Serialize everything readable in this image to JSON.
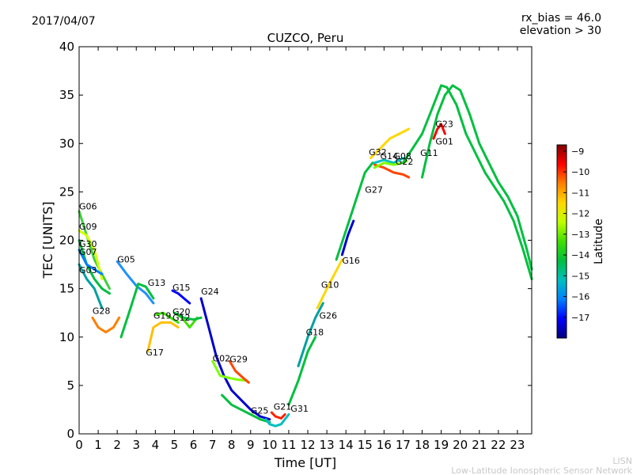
{
  "header": {
    "date": "2017/04/07",
    "rx_bias": "rx_bias = 46.0",
    "elevation": "elevation > 30"
  },
  "footer": {
    "line1": "LISN",
    "line2": "Low-Latitude Ionospheric Sensor Network"
  },
  "chart_data": {
    "type": "line",
    "title": "CUZCO, Peru",
    "xlabel": "Time [UT]",
    "ylabel": "TEC [UNITS]",
    "xlim": [
      0,
      23.75
    ],
    "ylim": [
      0,
      40
    ],
    "xticks": [
      0,
      1,
      2,
      3,
      4,
      5,
      6,
      7,
      8,
      9,
      10,
      11,
      12,
      13,
      14,
      15,
      16,
      17,
      18,
      19,
      20,
      21,
      22,
      23
    ],
    "yticks": [
      0,
      5,
      10,
      15,
      20,
      25,
      30,
      35,
      40
    ],
    "grid": false,
    "colorbar": {
      "label": "Latitude",
      "range": [
        -18,
        -8.7
      ],
      "ticks": [
        -9,
        -10,
        -11,
        -12,
        -13,
        -14,
        -15,
        -16,
        -17
      ],
      "colors": [
        "#00007f",
        "#0000ff",
        "#007fff",
        "#00bfbf",
        "#00bf3f",
        "#3fdf00",
        "#bfff00",
        "#ffd700",
        "#ff7f00",
        "#ff0000",
        "#7f0000"
      ]
    },
    "series": [
      {
        "name": "G06",
        "color": "#3fcf3f",
        "x": [
          0,
          0.4,
          0.8,
          1.2,
          1.6
        ],
        "y": [
          23,
          20.5,
          18,
          16.5,
          15
        ]
      },
      {
        "name": "G09",
        "color": "#d4ff00",
        "x": [
          0,
          0.4,
          0.8,
          1.2
        ],
        "y": [
          21,
          20.5,
          19,
          16
        ]
      },
      {
        "name": "G30",
        "color": "#00bf3f",
        "x": [
          0,
          0.4,
          0.8,
          1.2,
          1.6
        ],
        "y": [
          20,
          17.5,
          16,
          15,
          14.5
        ]
      },
      {
        "name": "G07",
        "color": "#007fff",
        "x": [
          0,
          0.4,
          0.8,
          1.2
        ],
        "y": [
          19,
          17.5,
          17,
          16.5
        ]
      },
      {
        "name": "G03",
        "color": "#00a0a0",
        "x": [
          0,
          0.4,
          0.8,
          1.2
        ],
        "y": [
          17.5,
          16,
          15,
          13
        ]
      },
      {
        "name": "G28",
        "color": "#ff7f00",
        "x": [
          0.7,
          1,
          1.4,
          1.8,
          2.1
        ],
        "y": [
          12,
          11,
          10.5,
          11,
          12
        ]
      },
      {
        "name": "G05",
        "color": "#1e90ff",
        "x": [
          2,
          2.5,
          3,
          3.5,
          3.9
        ],
        "y": [
          17.8,
          16.5,
          15.3,
          14.5,
          13.5
        ]
      },
      {
        "name": "G13",
        "color": "#00bf3f",
        "x": [
          2.2,
          2.7,
          3.1,
          3.5,
          3.9
        ],
        "y": [
          10,
          13,
          15.5,
          15.2,
          14
        ]
      },
      {
        "name": "G17",
        "color": "#ffbf00",
        "x": [
          3.6,
          3.9,
          4.3,
          4.8,
          5.2
        ],
        "y": [
          8.5,
          11,
          11.5,
          11.5,
          11
        ]
      },
      {
        "name": "G15",
        "color": "#0000ff",
        "x": [
          4.9,
          5.2,
          5.5,
          5.8
        ],
        "y": [
          14.8,
          14.5,
          14,
          13.5
        ]
      },
      {
        "name": "G19",
        "color": "#3fdf00",
        "x": [
          4,
          4.4,
          4.8,
          5.2
        ],
        "y": [
          12.3,
          12.5,
          12,
          11.5
        ]
      },
      {
        "name": "G20",
        "color": "#3fdf00",
        "x": [
          5,
          5.4,
          5.8,
          6.2
        ],
        "y": [
          12.5,
          12,
          11,
          12
        ]
      },
      {
        "name": "G12",
        "color": "#00bf3f",
        "x": [
          5,
          5.5,
          6,
          6.4
        ],
        "y": [
          12.5,
          12,
          11.8,
          12
        ]
      },
      {
        "name": "G24",
        "color": "#0000cd",
        "x": [
          6.4,
          6.8,
          7.2,
          7.6,
          8,
          8.5,
          9,
          9.5,
          10
        ],
        "y": [
          14,
          11,
          8,
          6,
          4.5,
          3.5,
          2.5,
          1.8,
          1.5
        ]
      },
      {
        "name": "G02",
        "color": "#7fff00",
        "x": [
          7,
          7.4,
          7.8,
          8.3,
          8.8
        ],
        "y": [
          7.5,
          6,
          5.8,
          5.6,
          5.5
        ]
      },
      {
        "name": "G29",
        "color": "#ff4500",
        "x": [
          7.9,
          8.2,
          8.6,
          8.9
        ],
        "y": [
          7.5,
          6.5,
          5.8,
          5.3
        ]
      },
      {
        "name": "G25",
        "color": "#00bf3f",
        "x": [
          7.5,
          8,
          8.5,
          9,
          9.5,
          10
        ],
        "y": [
          4,
          3,
          2.5,
          2,
          1.5,
          1.2
        ]
      },
      {
        "name": "G21",
        "color": "#ff2000",
        "x": [
          10.1,
          10.3,
          10.6,
          10.8
        ],
        "y": [
          2.2,
          1.8,
          1.6,
          2
        ]
      },
      {
        "name": "G31",
        "color": "#00bfbf",
        "x": [
          9.8,
          10,
          10.3,
          10.6,
          11
        ],
        "y": [
          1.5,
          1,
          0.8,
          1,
          2
        ]
      },
      {
        "name": "G18",
        "color": "#00bf3f",
        "x": [
          11,
          11.5,
          12,
          12.4
        ],
        "y": [
          3,
          5.5,
          8.5,
          10
        ]
      },
      {
        "name": "G26",
        "color": "#00a0a0",
        "x": [
          11.5,
          12,
          12.4,
          12.8
        ],
        "y": [
          7,
          10,
          12,
          13.5
        ]
      },
      {
        "name": "G10",
        "color": "#ffd700",
        "x": [
          12.5,
          13,
          13.4,
          13.8
        ],
        "y": [
          13,
          15,
          16.5,
          18
        ]
      },
      {
        "name": "G16",
        "color": "#00bf3f",
        "x": [
          13.5,
          14,
          14.5,
          15,
          15.4
        ],
        "y": [
          18,
          21,
          24,
          27,
          28
        ]
      },
      {
        "name": "G27",
        "color": "#0000cd",
        "x": [
          13.8,
          14.1,
          14.4
        ],
        "y": [
          18.5,
          20.5,
          22
        ]
      },
      {
        "name": "G32",
        "color": "#ffd700",
        "x": [
          15.3,
          15.8,
          16.3,
          16.8,
          17.3
        ],
        "y": [
          28.5,
          29.5,
          30.5,
          31,
          31.5
        ]
      },
      {
        "name": "G14",
        "color": "#ff4500",
        "x": [
          15.5,
          16,
          16.5,
          17,
          17.3
        ],
        "y": [
          27.8,
          27.5,
          27,
          26.8,
          26.5
        ]
      },
      {
        "name": "G08",
        "color": "#00bfbf",
        "x": [
          15.5,
          16,
          16.5,
          17
        ],
        "y": [
          28,
          28.3,
          28,
          28.5
        ]
      },
      {
        "name": "G22",
        "color": "#7fff00",
        "x": [
          15.5,
          16,
          16.5,
          17,
          17.2
        ],
        "y": [
          27.5,
          28,
          27.8,
          28,
          28.2
        ]
      },
      {
        "name": "G11",
        "color": "#00bf3f",
        "x": [
          17,
          17.5,
          18,
          18.5,
          19,
          19.3,
          19.8,
          20.3,
          20.8,
          21.3,
          21.8,
          22.3,
          22.8,
          23.3,
          23.75
        ],
        "y": [
          28,
          29.5,
          31,
          33.5,
          36,
          35.8,
          34,
          31,
          29,
          27,
          25.5,
          24,
          22,
          19,
          16
        ]
      },
      {
        "name": "G01",
        "color": "#00bf3f",
        "x": [
          18,
          18.4,
          18.8,
          19.2,
          19.6,
          20,
          20.5,
          21,
          21.5,
          22,
          22.5,
          23,
          23.5,
          23.75
        ],
        "y": [
          26.5,
          30,
          33,
          35,
          36,
          35.5,
          33,
          30,
          28,
          26,
          24.5,
          22.5,
          19,
          17
        ]
      },
      {
        "name": "G23",
        "color": "#ff0000",
        "x": [
          18.6,
          18.8,
          19,
          19.2
        ],
        "y": [
          30.5,
          31.5,
          32,
          31
        ]
      }
    ],
    "annotations": [
      {
        "text": "G06",
        "x": 0.0,
        "y": 23.2
      },
      {
        "text": "G09",
        "x": 0.0,
        "y": 21.1
      },
      {
        "text": "G30",
        "x": 0.0,
        "y": 19.3
      },
      {
        "text": "G07",
        "x": 0.0,
        "y": 18.5
      },
      {
        "text": "G03",
        "x": 0.0,
        "y": 16.6
      },
      {
        "text": "G28",
        "x": 0.7,
        "y": 12.4
      },
      {
        "text": "G05",
        "x": 2.0,
        "y": 17.7
      },
      {
        "text": "G13",
        "x": 3.6,
        "y": 15.3
      },
      {
        "text": "G15",
        "x": 4.9,
        "y": 14.8
      },
      {
        "text": "G24",
        "x": 6.4,
        "y": 14.4
      },
      {
        "text": "G19",
        "x": 3.9,
        "y": 11.9
      },
      {
        "text": "G20",
        "x": 4.9,
        "y": 12.3
      },
      {
        "text": "G12",
        "x": 4.9,
        "y": 11.7
      },
      {
        "text": "G17",
        "x": 3.5,
        "y": 8.1
      },
      {
        "text": "G02",
        "x": 7.0,
        "y": 7.5
      },
      {
        "text": "G29",
        "x": 7.9,
        "y": 7.4
      },
      {
        "text": "G25",
        "x": 9.0,
        "y": 2.1
      },
      {
        "text": "G21",
        "x": 10.2,
        "y": 2.5
      },
      {
        "text": "G31",
        "x": 11.1,
        "y": 2.3
      },
      {
        "text": "G18",
        "x": 11.9,
        "y": 10.2
      },
      {
        "text": "G26",
        "x": 12.6,
        "y": 11.9
      },
      {
        "text": "G10",
        "x": 12.7,
        "y": 15.1
      },
      {
        "text": "G16",
        "x": 13.8,
        "y": 17.6
      },
      {
        "text": "G27",
        "x": 15.0,
        "y": 24.9
      },
      {
        "text": "G32",
        "x": 15.2,
        "y": 28.8
      },
      {
        "text": "G14",
        "x": 15.8,
        "y": 28.4
      },
      {
        "text": "G08",
        "x": 16.5,
        "y": 28.4
      },
      {
        "text": "G22",
        "x": 16.6,
        "y": 27.8
      },
      {
        "text": "G11",
        "x": 17.9,
        "y": 28.7
      },
      {
        "text": "G23",
        "x": 18.7,
        "y": 31.7
      },
      {
        "text": "G01",
        "x": 18.7,
        "y": 29.9
      }
    ]
  }
}
